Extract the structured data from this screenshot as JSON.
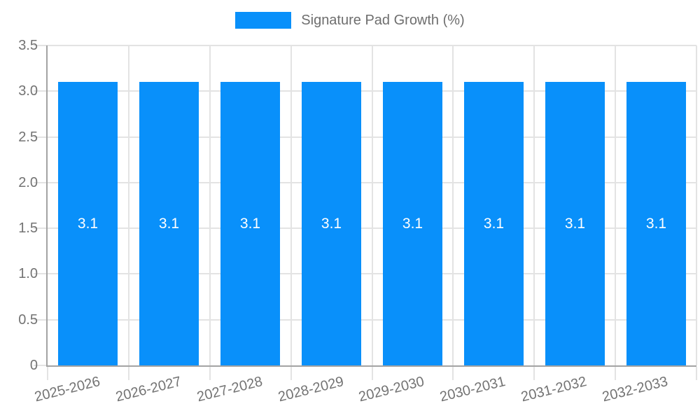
{
  "chart_data": {
    "type": "bar",
    "title": "",
    "legend": {
      "label": "Signature Pad Growth (%)",
      "position": "top"
    },
    "categories": [
      "2025-2026",
      "2026-2027",
      "2027-2028",
      "2028-2029",
      "2029-2030",
      "2030-2031",
      "2031-2032",
      "2032-2033"
    ],
    "series": [
      {
        "name": "Signature Pad Growth (%)",
        "values": [
          3.1,
          3.1,
          3.1,
          3.1,
          3.1,
          3.1,
          3.1,
          3.1
        ],
        "bar_labels": [
          "3.1",
          "3.1",
          "3.1",
          "3.1",
          "3.1",
          "3.1",
          "3.1",
          "3.1"
        ]
      }
    ],
    "xlabel": "",
    "ylabel": "",
    "ylim": [
      0,
      3.5
    ],
    "yticks": {
      "values": [
        0,
        0.5,
        1,
        1.5,
        2,
        2.5,
        3,
        3.5
      ],
      "labels": [
        "0",
        "0.5",
        "1.0",
        "1.5",
        "2.0",
        "2.5",
        "3.0",
        "3.5"
      ]
    },
    "grid": true,
    "colors": {
      "bar": "#0990fa",
      "grid": "#e3e3e3",
      "axis": "#a3a3a3",
      "tick_text": "#737373",
      "legend_text": "#6e6e6e",
      "value_label": "#ffffff",
      "background": "#ffffff"
    }
  }
}
